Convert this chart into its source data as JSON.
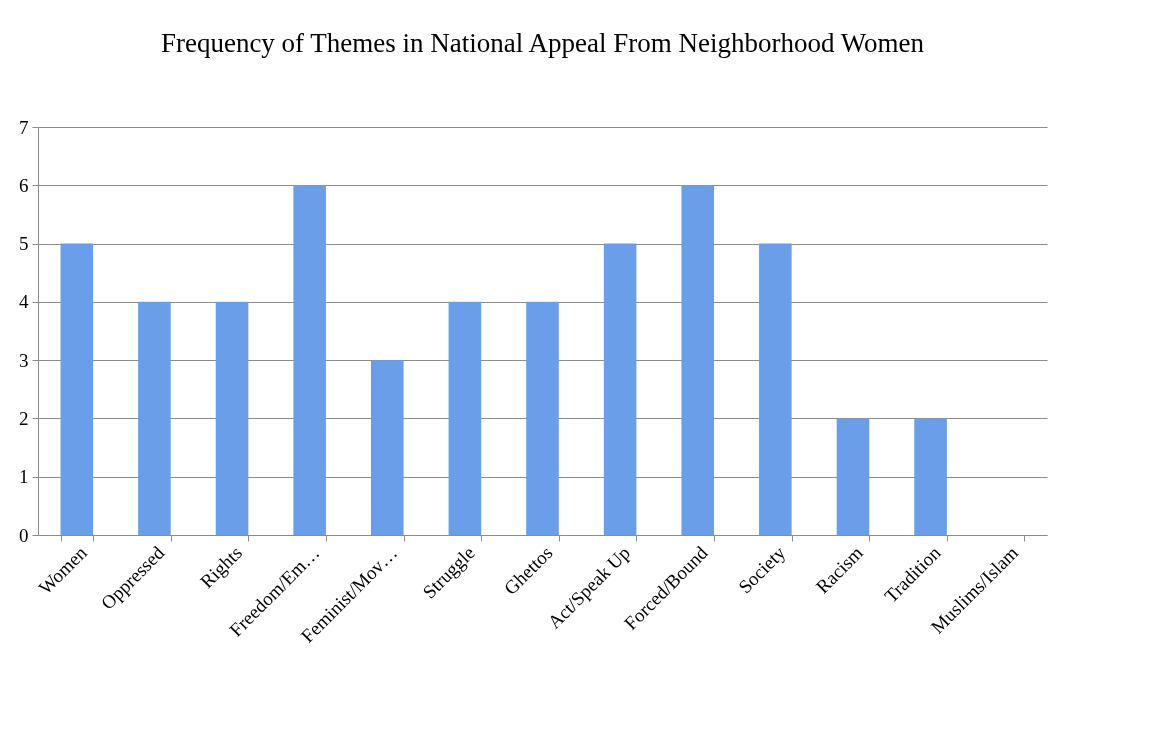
{
  "chart_data": {
    "type": "bar",
    "title": "Frequency of Themes in National Appeal From Neighborhood Women",
    "categories": [
      "Women",
      "Oppressed",
      "Rights",
      "Freedom/Em…",
      "Feminist/Mov…",
      "Struggle",
      "Ghettos",
      "Act/Speak Up",
      "Forced/Bound",
      "Society",
      "Racism",
      "Tradition",
      "Muslims/Islam"
    ],
    "values": [
      5,
      4,
      4,
      6,
      3,
      4,
      4,
      5,
      6,
      5,
      2,
      2,
      0
    ],
    "color": "#6a9ee8",
    "ylim": [
      0,
      7
    ],
    "yticks": [
      0,
      1,
      2,
      3,
      4,
      5,
      6,
      7
    ],
    "grid": "y"
  }
}
